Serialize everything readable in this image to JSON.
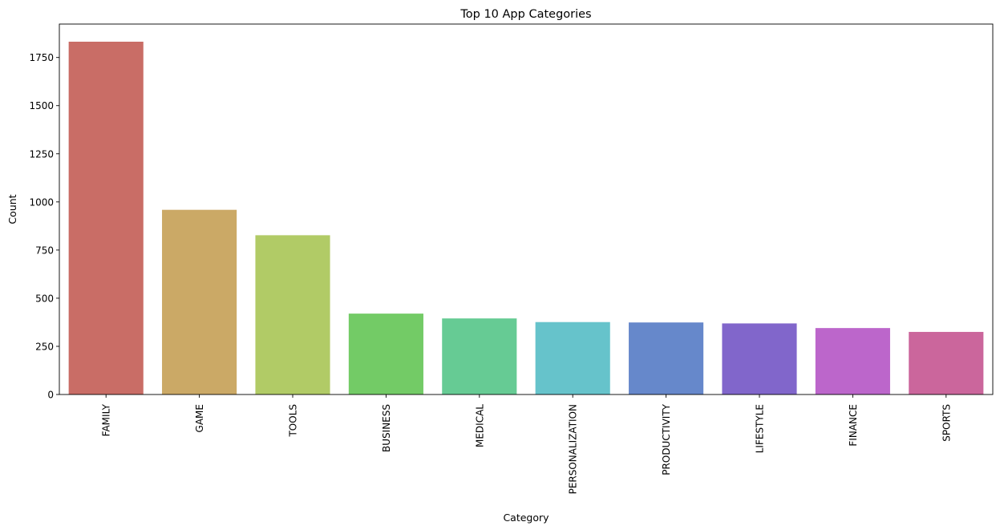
{
  "chart_data": {
    "type": "bar",
    "title": "Top 10 App Categories",
    "xlabel": "Category",
    "ylabel": "Count",
    "categories": [
      "FAMILY",
      "GAME",
      "TOOLS",
      "BUSINESS",
      "MEDICAL",
      "PERSONALIZATION",
      "PRODUCTIVITY",
      "LIFESTYLE",
      "FINANCE",
      "SPORTS"
    ],
    "values": [
      1832,
      959,
      827,
      420,
      395,
      376,
      374,
      369,
      345,
      325
    ],
    "colors": [
      "#c96d66",
      "#cba966",
      "#b1cb66",
      "#73cb66",
      "#66cb94",
      "#66c3cb",
      "#6688cb",
      "#8166cb",
      "#bc66cb",
      "#cb669c"
    ],
    "yticks": [
      0,
      250,
      500,
      750,
      1000,
      1250,
      1500,
      1750
    ],
    "ylim": [
      0,
      1923.6
    ],
    "grid": false
  }
}
